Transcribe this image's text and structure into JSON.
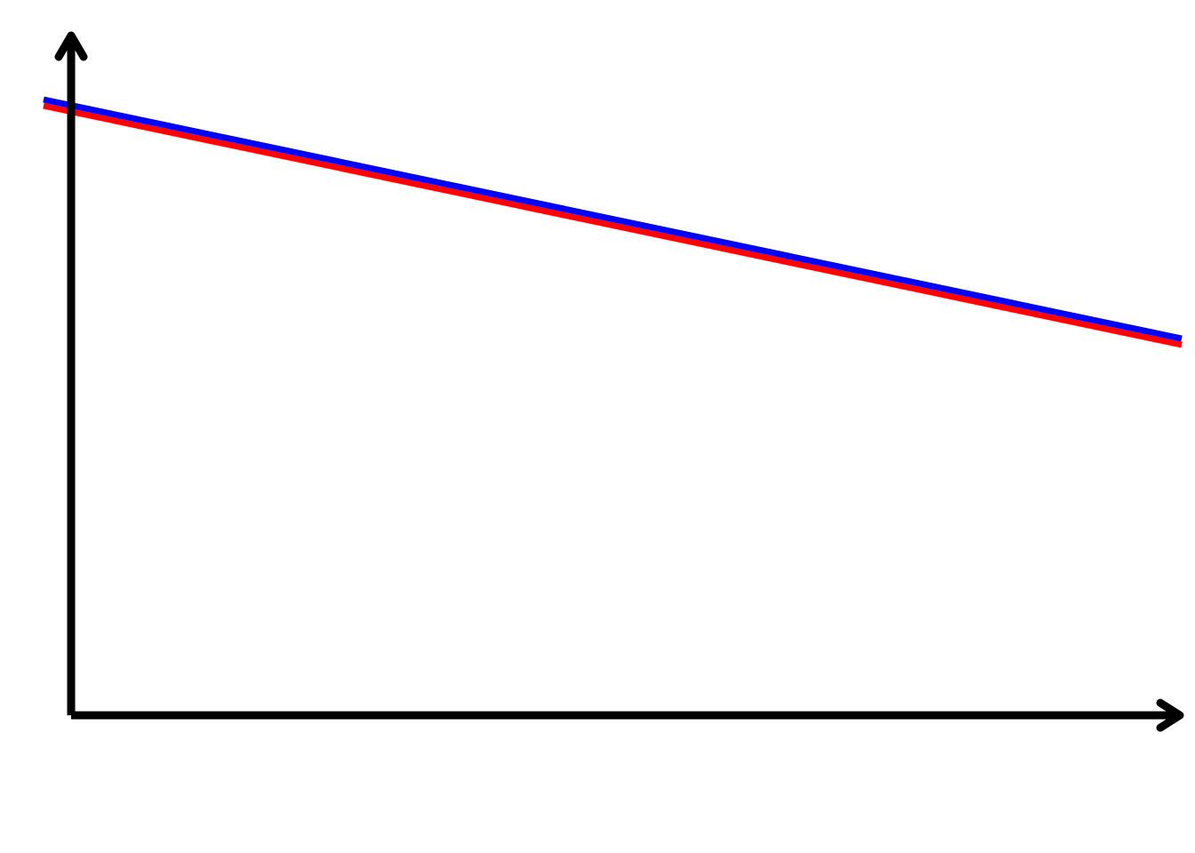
{
  "diagram": {
    "background": "#ffffff",
    "axis_color": "#000000",
    "lines": [
      {
        "id": "upper",
        "color": "#0000ff"
      },
      {
        "id": "lower",
        "color": "#ff0000"
      }
    ]
  }
}
